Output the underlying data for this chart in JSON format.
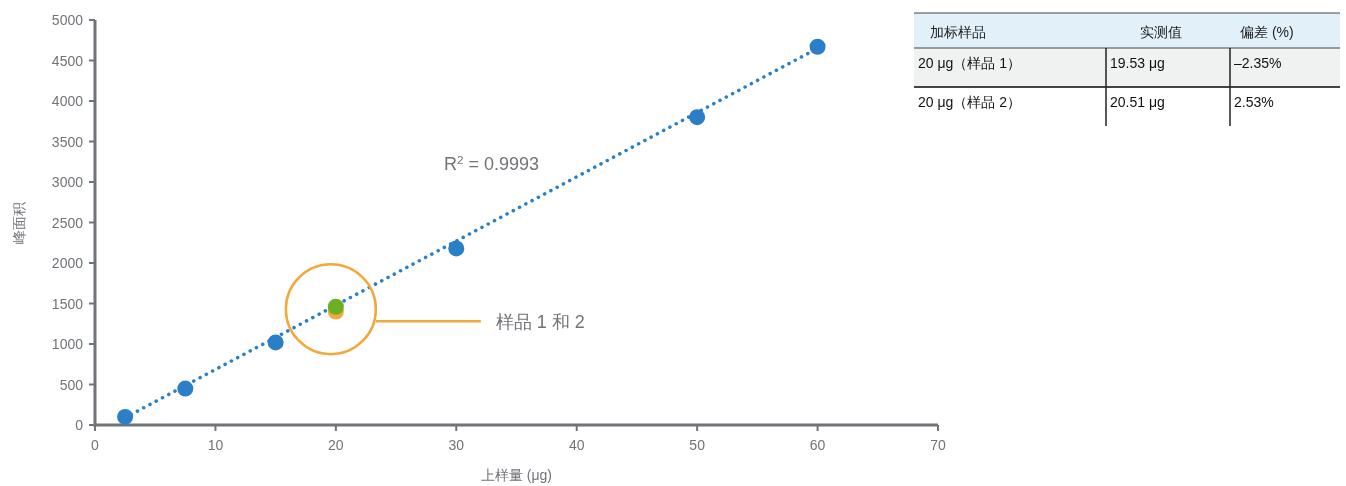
{
  "chart_data": [
    {
      "type": "scatter",
      "xlabel": "上样量 (μg)",
      "ylabel": "峰面积",
      "xlim": [
        0,
        70
      ],
      "xticks": [
        0,
        10,
        20,
        30,
        40,
        50,
        60,
        70
      ],
      "ylim": [
        0,
        5000
      ],
      "yticks": [
        0,
        500,
        1000,
        1500,
        2000,
        2500,
        3000,
        3500,
        4000,
        4500,
        5000
      ],
      "grid": false,
      "marker": "circle",
      "series": [
        {
          "type": "line",
          "line_style": "dotted",
          "marker": "none",
          "color": "#2a7fc6",
          "x": [
            3,
            60
          ],
          "values": [
            130,
            4650
          ]
        },
        {
          "color": "#2a7fc6",
          "x": [
            2.5,
            7.5,
            15,
            30,
            50,
            60
          ],
          "values": [
            100,
            450,
            1020,
            2180,
            3800,
            4670
          ]
        },
        {
          "color": "#f2a93b",
          "x": [
            20
          ],
          "values": [
            1400
          ]
        },
        {
          "color": "#6ab023",
          "x": [
            20
          ],
          "values": [
            1460
          ]
        }
      ],
      "annotations": [
        "R$^{2}$ = 0.9993",
        "样品 1 和 2"
      ]
    },
    {
      "type": "other",
      "categories": [
        "加标样品",
        "实测值",
        "偏差 (%)"
      ],
      "cell_labels": [
        [
          "20 μg（样品 1）",
          "19.53 μg",
          "–2.35%"
        ],
        [
          "20 μg（样品 2）",
          "20.51 μg",
          "2.53%"
        ]
      ]
    }
  ]
}
